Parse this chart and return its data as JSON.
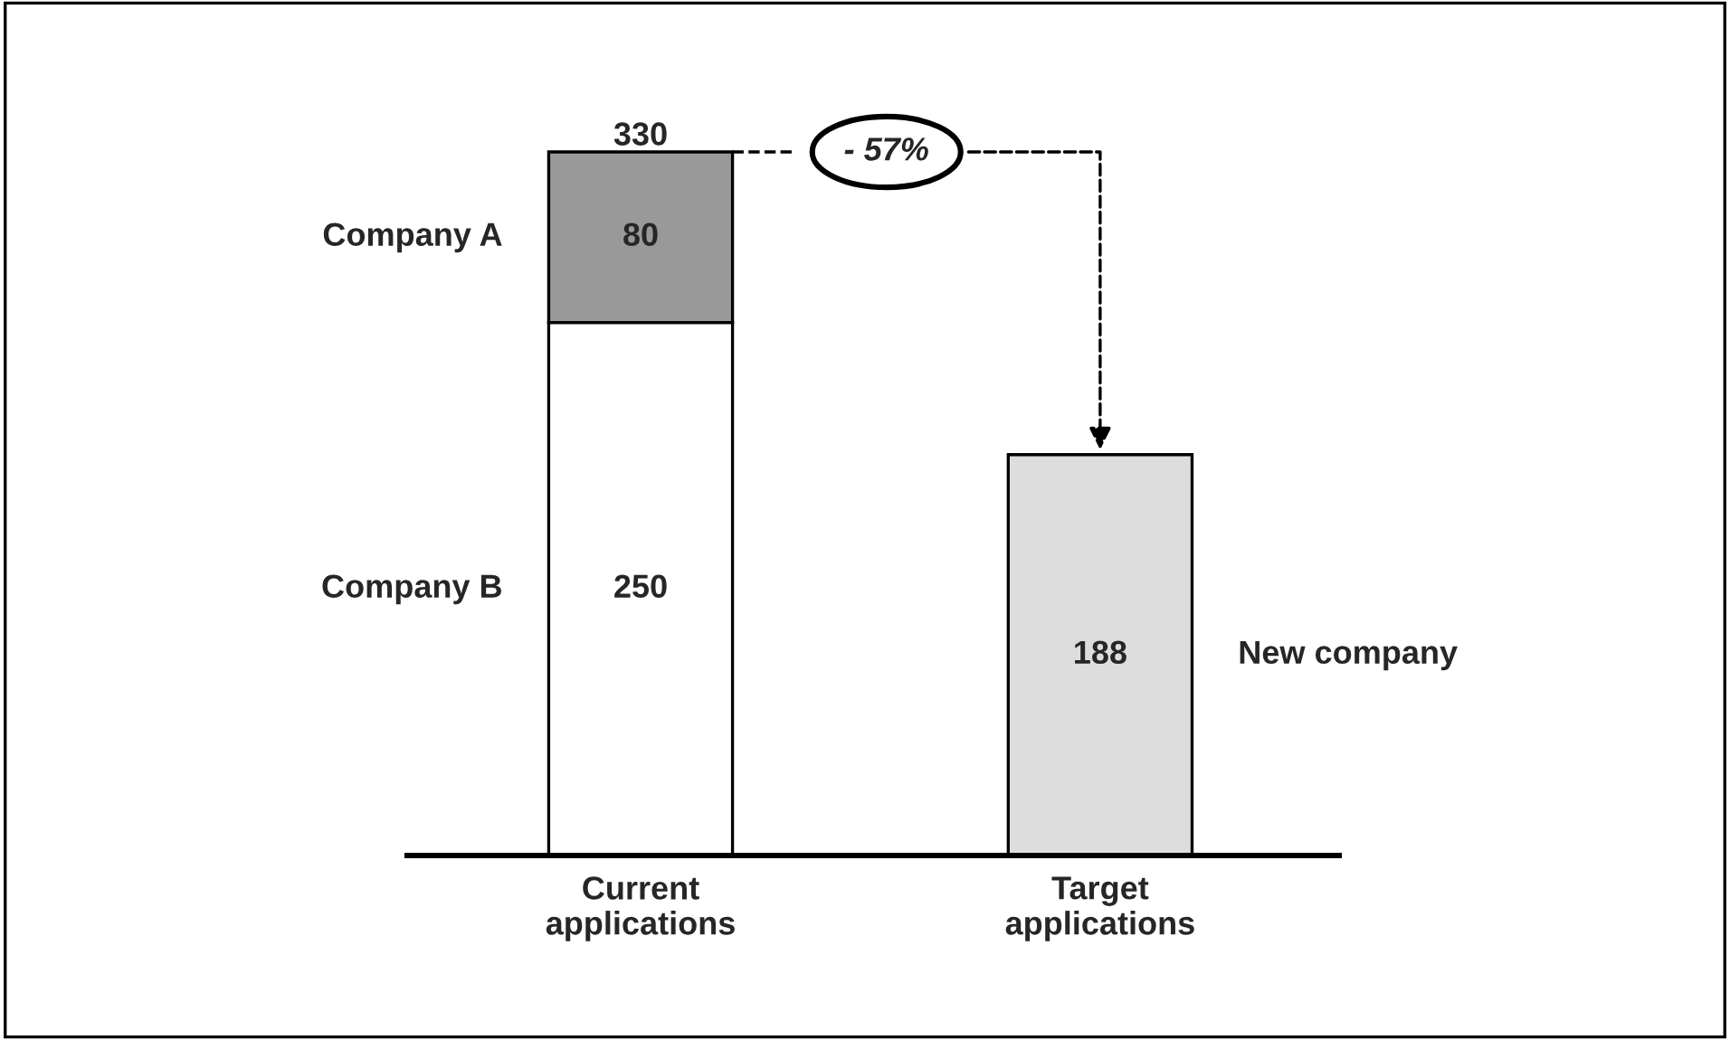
{
  "chart_data": {
    "type": "bar",
    "stacked": true,
    "data_labels": true,
    "categories": [
      "Current applications",
      "Target applications"
    ],
    "series": [
      {
        "name": "Company B",
        "color": "#ffffff",
        "values": [
          250,
          null
        ]
      },
      {
        "name": "Company A",
        "color": "#999999",
        "values": [
          80,
          null
        ]
      },
      {
        "name": "New company",
        "color": "#dddddd",
        "values": [
          null,
          188
        ]
      }
    ],
    "totals": [
      "330",
      null
    ],
    "annotations": [
      "- 57%"
    ],
    "legend": false,
    "grid": false
  }
}
